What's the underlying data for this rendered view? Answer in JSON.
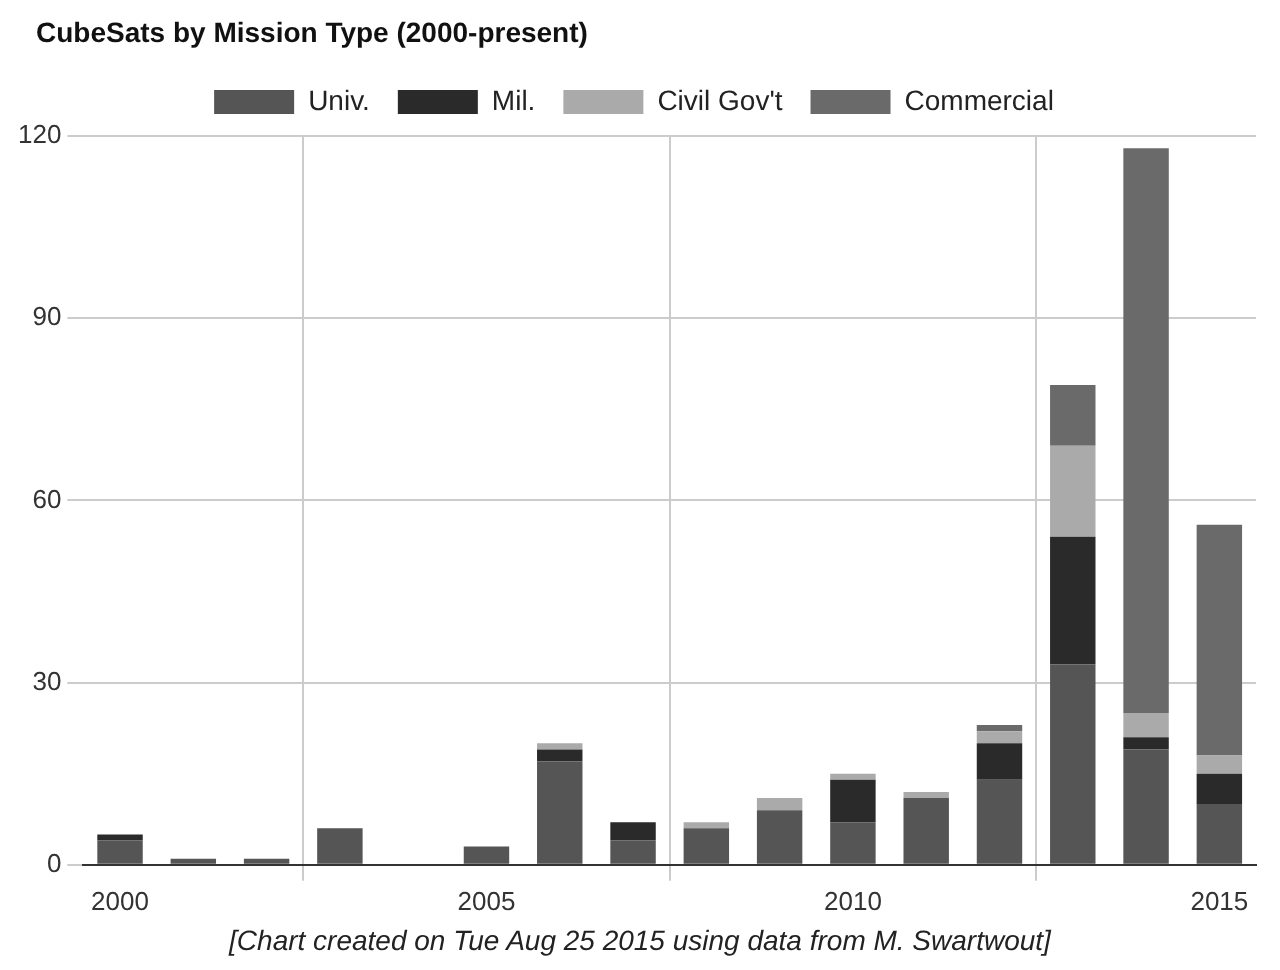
{
  "chart_data": {
    "type": "bar",
    "title": "CubeSats by Mission Type (2000-present)",
    "stacked": true,
    "x": [
      2000,
      2001,
      2002,
      2003,
      2004,
      2005,
      2006,
      2007,
      2008,
      2009,
      2010,
      2011,
      2012,
      2013,
      2014,
      2015
    ],
    "series": [
      {
        "name": "Univ.",
        "color": "#555555",
        "values": [
          4,
          1,
          1,
          6,
          0,
          3,
          17,
          4,
          6,
          9,
          7,
          11,
          14,
          33,
          19,
          10
        ]
      },
      {
        "name": "Mil.",
        "color": "#2a2a2a",
        "values": [
          1,
          0,
          0,
          0,
          0,
          0,
          2,
          3,
          0,
          0,
          7,
          0,
          6,
          21,
          2,
          5
        ]
      },
      {
        "name": "Civil Gov't",
        "color": "#aaaaaa",
        "values": [
          0,
          0,
          0,
          0,
          0,
          0,
          1,
          0,
          1,
          2,
          1,
          1,
          2,
          15,
          4,
          3
        ]
      },
      {
        "name": "Commercial",
        "color": "#6a6a6a",
        "values": [
          0,
          0,
          0,
          0,
          0,
          0,
          0,
          0,
          0,
          0,
          0,
          0,
          1,
          10,
          93,
          38
        ]
      }
    ],
    "xlim": [
      1999.5,
      2015.5
    ],
    "xticks": [
      2000,
      2005,
      2010,
      2015
    ],
    "ylim": [
      0,
      120
    ],
    "yticks": [
      0,
      30,
      60,
      90,
      120
    ],
    "grid": true,
    "legend": "top",
    "annotations": [
      "[Chart created on Tue Aug 25 2015 using data from M. Swartwout]"
    ]
  }
}
